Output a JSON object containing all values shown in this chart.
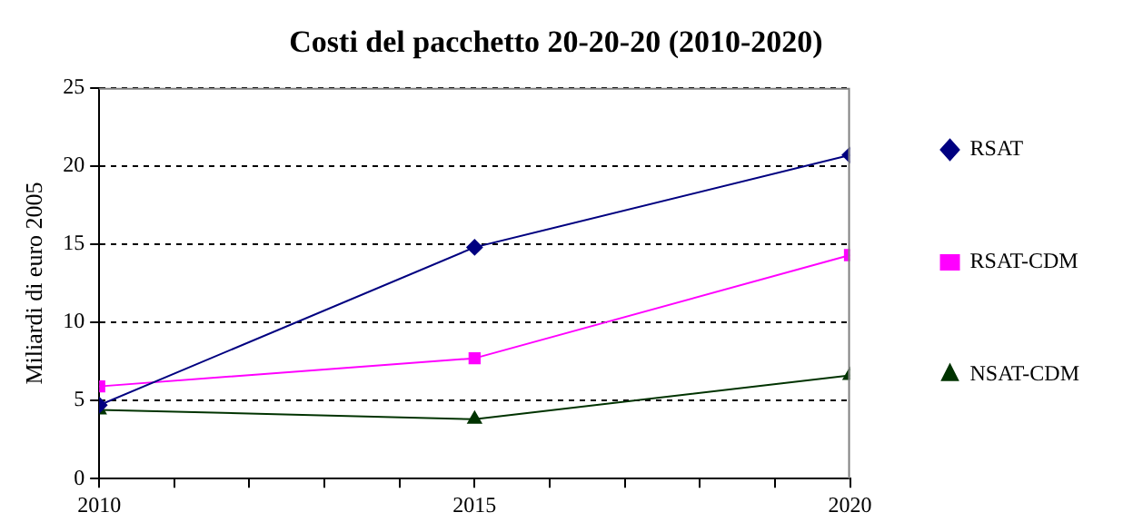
{
  "chart_data": {
    "type": "line",
    "title": "Costi del pacchetto 20-20-20 (2010-2020)",
    "ylabel": "Miliardi di euro 2005",
    "x": [
      2010,
      2015,
      2020
    ],
    "xlim": [
      2010,
      2020
    ],
    "xticks": [
      2010,
      {
        "value": 2011,
        "label": null
      },
      {
        "value": 2012,
        "label": null
      },
      {
        "value": 2013,
        "label": null
      },
      {
        "value": 2014,
        "label": null
      },
      2015,
      {
        "value": 2016,
        "label": null
      },
      {
        "value": 2017,
        "label": null
      },
      {
        "value": 2018,
        "label": null
      },
      {
        "value": 2019,
        "label": null
      },
      2020
    ],
    "ylim": [
      0,
      25
    ],
    "yticks": [
      0,
      5,
      10,
      15,
      20,
      25
    ],
    "series": [
      {
        "name": "RSAT",
        "color": "#000080",
        "marker": "diamond",
        "values": [
          4.7,
          14.8,
          20.7
        ]
      },
      {
        "name": "RSAT-CDM",
        "color": "#ff00ff",
        "marker": "square",
        "values": [
          5.9,
          7.7,
          14.3
        ]
      },
      {
        "name": "NSAT-CDM",
        "color": "#003300",
        "marker": "triangle",
        "values": [
          4.4,
          3.8,
          6.6
        ]
      }
    ],
    "grid": "y",
    "legend": "right",
    "line_style": "solid"
  }
}
